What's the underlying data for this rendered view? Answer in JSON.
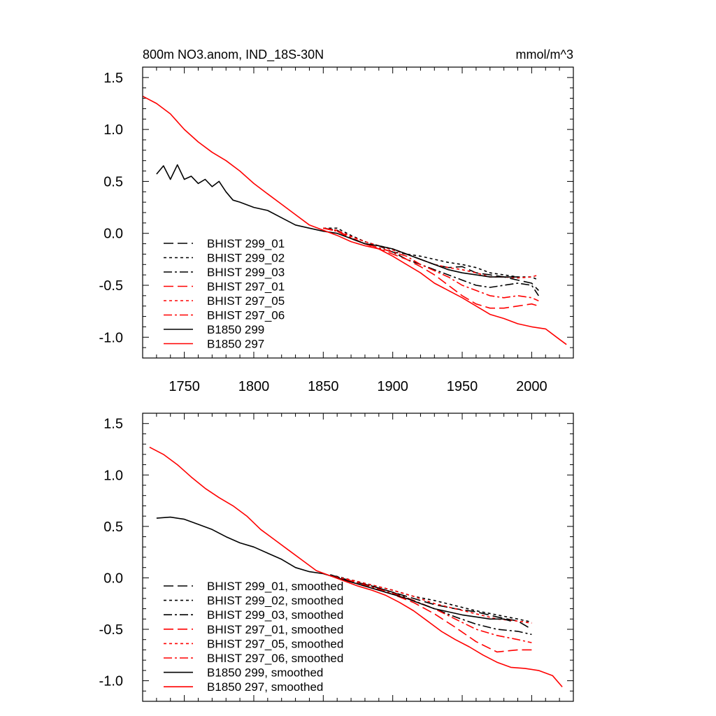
{
  "chart_data": [
    {
      "type": "line",
      "panel": "top",
      "title": "800m NO3.anom, IND_18S-30N",
      "units": "mmol/m^3",
      "xlim": [
        1720,
        2030
      ],
      "ylim": [
        -1.2,
        1.6
      ],
      "x_ticks": [
        1750,
        1800,
        1850,
        1900,
        1950,
        2000
      ],
      "y_ticks": [
        1.5,
        1.0,
        0.5,
        0.0,
        -0.5,
        -1.0
      ],
      "y_tick_labels": [
        "1.5",
        "1.0",
        "0.5",
        "0.0",
        "-0.5",
        "-1.0"
      ],
      "legend_position": "lower-left",
      "series": [
        {
          "name": "BHIST 299_01",
          "color": "#000000",
          "dash": "dash",
          "x": [
            1850,
            1860,
            1870,
            1880,
            1890,
            1900,
            1910,
            1920,
            1930,
            1940,
            1950,
            1960,
            1970,
            1980,
            1990,
            2000,
            2005
          ],
          "y": [
            0.05,
            0.03,
            -0.05,
            -0.1,
            -0.12,
            -0.18,
            -0.2,
            -0.25,
            -0.3,
            -0.33,
            -0.32,
            -0.38,
            -0.4,
            -0.42,
            -0.45,
            -0.48,
            -0.55
          ]
        },
        {
          "name": "BHIST 299_02",
          "color": "#000000",
          "dash": "dot",
          "x": [
            1850,
            1860,
            1870,
            1880,
            1890,
            1900,
            1910,
            1920,
            1930,
            1940,
            1950,
            1960,
            1970,
            1980,
            1990,
            2000,
            2005
          ],
          "y": [
            0.05,
            0.05,
            -0.02,
            -0.08,
            -0.12,
            -0.15,
            -0.2,
            -0.22,
            -0.25,
            -0.28,
            -0.3,
            -0.33,
            -0.38,
            -0.4,
            -0.42,
            -0.42,
            -0.45
          ]
        },
        {
          "name": "BHIST 299_03",
          "color": "#000000",
          "dash": "dashdot",
          "x": [
            1850,
            1860,
            1870,
            1880,
            1890,
            1900,
            1910,
            1920,
            1930,
            1940,
            1950,
            1960,
            1970,
            1980,
            1990,
            2000,
            2005
          ],
          "y": [
            0.05,
            0.02,
            -0.05,
            -0.1,
            -0.14,
            -0.18,
            -0.25,
            -0.3,
            -0.35,
            -0.4,
            -0.45,
            -0.5,
            -0.52,
            -0.5,
            -0.48,
            -0.5,
            -0.6
          ]
        },
        {
          "name": "BHIST 297_01",
          "color": "#ff0000",
          "dash": "dash",
          "x": [
            1850,
            1860,
            1870,
            1880,
            1890,
            1900,
            1910,
            1920,
            1930,
            1940,
            1950,
            1960,
            1970,
            1980,
            1990,
            2000,
            2005
          ],
          "y": [
            0.05,
            0.02,
            -0.05,
            -0.1,
            -0.15,
            -0.2,
            -0.25,
            -0.32,
            -0.4,
            -0.5,
            -0.6,
            -0.68,
            -0.72,
            -0.72,
            -0.7,
            -0.68,
            -0.7
          ]
        },
        {
          "name": "BHIST 297_05",
          "color": "#ff0000",
          "dash": "dot",
          "x": [
            1850,
            1860,
            1870,
            1880,
            1890,
            1900,
            1910,
            1920,
            1930,
            1940,
            1950,
            1960,
            1970,
            1980,
            1990,
            2000,
            2005
          ],
          "y": [
            0.05,
            0.03,
            -0.03,
            -0.08,
            -0.12,
            -0.16,
            -0.2,
            -0.25,
            -0.3,
            -0.33,
            -0.35,
            -0.38,
            -0.42,
            -0.42,
            -0.43,
            -0.42,
            -0.4
          ]
        },
        {
          "name": "BHIST 297_06",
          "color": "#ff0000",
          "dash": "dashdot",
          "x": [
            1850,
            1860,
            1870,
            1880,
            1890,
            1900,
            1910,
            1920,
            1930,
            1940,
            1950,
            1960,
            1970,
            1980,
            1990,
            2000,
            2005
          ],
          "y": [
            0.05,
            0.02,
            -0.04,
            -0.1,
            -0.14,
            -0.18,
            -0.22,
            -0.3,
            -0.36,
            -0.42,
            -0.5,
            -0.55,
            -0.6,
            -0.62,
            -0.6,
            -0.62,
            -0.65
          ]
        },
        {
          "name": "B1850 299",
          "color": "#000000",
          "dash": "solid",
          "x": [
            1730,
            1735,
            1740,
            1745,
            1750,
            1755,
            1760,
            1765,
            1770,
            1775,
            1780,
            1785,
            1790,
            1800,
            1810,
            1820,
            1830,
            1840,
            1850,
            1860,
            1870,
            1880,
            1890,
            1900,
            1910,
            1920,
            1930,
            1940,
            1950,
            1960,
            1970,
            1980,
            1990
          ],
          "y": [
            0.57,
            0.65,
            0.52,
            0.66,
            0.52,
            0.55,
            0.48,
            0.52,
            0.45,
            0.5,
            0.4,
            0.32,
            0.3,
            0.25,
            0.22,
            0.15,
            0.08,
            0.05,
            0.02,
            0.0,
            -0.05,
            -0.1,
            -0.12,
            -0.15,
            -0.2,
            -0.25,
            -0.3,
            -0.35,
            -0.38,
            -0.4,
            -0.42,
            -0.42,
            -0.42
          ]
        },
        {
          "name": "B1850 297",
          "color": "#ff0000",
          "dash": "solid",
          "x": [
            1720,
            1730,
            1740,
            1750,
            1760,
            1770,
            1780,
            1790,
            1800,
            1810,
            1820,
            1830,
            1840,
            1850,
            1860,
            1870,
            1880,
            1890,
            1900,
            1910,
            1920,
            1930,
            1940,
            1950,
            1960,
            1970,
            1980,
            1990,
            2000,
            2010,
            2020,
            2025
          ],
          "y": [
            1.32,
            1.25,
            1.15,
            1.0,
            0.88,
            0.78,
            0.7,
            0.6,
            0.48,
            0.38,
            0.28,
            0.18,
            0.08,
            0.03,
            -0.02,
            -0.08,
            -0.12,
            -0.15,
            -0.22,
            -0.3,
            -0.38,
            -0.48,
            -0.55,
            -0.62,
            -0.7,
            -0.78,
            -0.82,
            -0.87,
            -0.9,
            -0.92,
            -1.02,
            -1.07
          ]
        }
      ]
    },
    {
      "type": "line",
      "panel": "bottom",
      "xlim": [
        1720,
        2030
      ],
      "ylim": [
        -1.2,
        1.6
      ],
      "y_ticks": [
        1.5,
        1.0,
        0.5,
        0.0,
        -0.5,
        -1.0
      ],
      "y_tick_labels": [
        "1.5",
        "1.0",
        "0.5",
        "0.0",
        "-0.5",
        "-1.0"
      ],
      "legend_position": "lower-left",
      "series": [
        {
          "name": "BHIST 299_01, smoothed",
          "color": "#000000",
          "dash": "dash",
          "x": [
            1855,
            1870,
            1885,
            1900,
            1915,
            1930,
            1945,
            1960,
            1975,
            1990,
            2000
          ],
          "y": [
            0.03,
            -0.03,
            -0.08,
            -0.14,
            -0.2,
            -0.26,
            -0.3,
            -0.33,
            -0.38,
            -0.42,
            -0.5
          ]
        },
        {
          "name": "BHIST 299_02, smoothed",
          "color": "#000000",
          "dash": "dot",
          "x": [
            1855,
            1870,
            1885,
            1900,
            1915,
            1930,
            1945,
            1960,
            1975,
            1990,
            2000
          ],
          "y": [
            0.03,
            -0.02,
            -0.07,
            -0.12,
            -0.18,
            -0.22,
            -0.27,
            -0.32,
            -0.36,
            -0.4,
            -0.43
          ]
        },
        {
          "name": "BHIST 299_03, smoothed",
          "color": "#000000",
          "dash": "dashdot",
          "x": [
            1855,
            1870,
            1885,
            1900,
            1915,
            1930,
            1945,
            1960,
            1975,
            1990,
            2000
          ],
          "y": [
            0.02,
            -0.03,
            -0.08,
            -0.14,
            -0.22,
            -0.3,
            -0.38,
            -0.45,
            -0.5,
            -0.52,
            -0.55
          ]
        },
        {
          "name": "BHIST 297_01, smoothed",
          "color": "#ff0000",
          "dash": "dash",
          "x": [
            1855,
            1870,
            1885,
            1900,
            1915,
            1930,
            1945,
            1960,
            1975,
            1990,
            2000
          ],
          "y": [
            0.02,
            -0.04,
            -0.1,
            -0.16,
            -0.24,
            -0.35,
            -0.48,
            -0.62,
            -0.72,
            -0.7,
            -0.7
          ]
        },
        {
          "name": "BHIST 297_05, smoothed",
          "color": "#ff0000",
          "dash": "dot",
          "x": [
            1855,
            1870,
            1885,
            1900,
            1915,
            1930,
            1945,
            1960,
            1975,
            1990,
            2000
          ],
          "y": [
            0.02,
            -0.02,
            -0.07,
            -0.12,
            -0.18,
            -0.25,
            -0.3,
            -0.35,
            -0.4,
            -0.42,
            -0.44
          ]
        },
        {
          "name": "BHIST 297_06, smoothed",
          "color": "#ff0000",
          "dash": "dashdot",
          "x": [
            1855,
            1870,
            1885,
            1900,
            1915,
            1930,
            1945,
            1960,
            1975,
            1990,
            2000
          ],
          "y": [
            0.02,
            -0.03,
            -0.09,
            -0.15,
            -0.22,
            -0.3,
            -0.4,
            -0.5,
            -0.56,
            -0.6,
            -0.63
          ]
        },
        {
          "name": "B1850 299, smoothed",
          "color": "#000000",
          "dash": "solid",
          "x": [
            1730,
            1740,
            1750,
            1760,
            1770,
            1780,
            1790,
            1800,
            1810,
            1820,
            1830,
            1840,
            1850,
            1860,
            1870,
            1880,
            1890,
            1900,
            1910,
            1920,
            1930,
            1940,
            1950,
            1960,
            1970,
            1980,
            1985
          ],
          "y": [
            0.58,
            0.59,
            0.57,
            0.52,
            0.47,
            0.4,
            0.34,
            0.3,
            0.24,
            0.18,
            0.1,
            0.06,
            0.04,
            0.0,
            -0.04,
            -0.08,
            -0.12,
            -0.16,
            -0.2,
            -0.25,
            -0.3,
            -0.33,
            -0.36,
            -0.38,
            -0.4,
            -0.4,
            -0.42
          ]
        },
        {
          "name": "B1850 297, smoothed",
          "color": "#ff0000",
          "dash": "solid",
          "x": [
            1725,
            1735,
            1745,
            1755,
            1765,
            1775,
            1785,
            1795,
            1805,
            1815,
            1825,
            1835,
            1845,
            1855,
            1865,
            1875,
            1885,
            1895,
            1905,
            1915,
            1925,
            1935,
            1945,
            1955,
            1965,
            1975,
            1985,
            1995,
            2005,
            2015,
            2022
          ],
          "y": [
            1.27,
            1.2,
            1.1,
            0.98,
            0.87,
            0.78,
            0.7,
            0.6,
            0.47,
            0.37,
            0.27,
            0.17,
            0.07,
            0.02,
            -0.03,
            -0.08,
            -0.12,
            -0.17,
            -0.24,
            -0.32,
            -0.42,
            -0.52,
            -0.6,
            -0.67,
            -0.75,
            -0.82,
            -0.87,
            -0.88,
            -0.9,
            -0.95,
            -1.06
          ]
        }
      ]
    }
  ]
}
